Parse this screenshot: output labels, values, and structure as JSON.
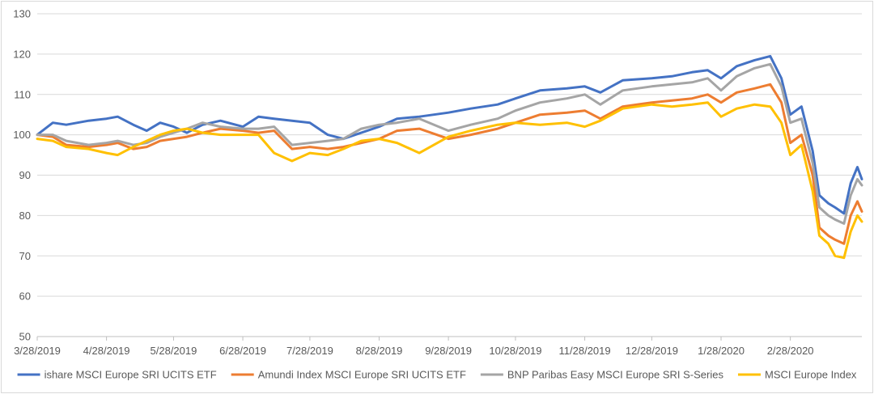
{
  "chart_data": {
    "type": "line",
    "title": "",
    "xlabel": "",
    "ylabel": "",
    "ylim": [
      50,
      130
    ],
    "y_ticks": [
      50,
      60,
      70,
      80,
      90,
      100,
      110,
      120,
      130
    ],
    "x_ticks": [
      "3/28/2019",
      "4/28/2019",
      "5/28/2019",
      "6/28/2019",
      "7/28/2019",
      "8/28/2019",
      "9/28/2019",
      "10/28/2019",
      "11/28/2019",
      "12/28/2019",
      "1/28/2020",
      "2/28/2020"
    ],
    "xlim": [
      "3/28/2019",
      "3/31/2020"
    ],
    "grid": "horizontal",
    "legend_position": "bottom",
    "series": [
      {
        "name": "ishare MSCI Europe SRI UCITS ETF",
        "color": "#4472c4",
        "points": [
          [
            "3/28/2019",
            100
          ],
          [
            "4/4/2019",
            103
          ],
          [
            "4/10/2019",
            102.5
          ],
          [
            "4/20/2019",
            103.5
          ],
          [
            "4/28/2019",
            104
          ],
          [
            "5/3/2019",
            104.5
          ],
          [
            "5/10/2019",
            102.5
          ],
          [
            "5/16/2019",
            101
          ],
          [
            "5/22/2019",
            103
          ],
          [
            "5/28/2019",
            102
          ],
          [
            "6/3/2019",
            100.5
          ],
          [
            "6/10/2019",
            102.5
          ],
          [
            "6/18/2019",
            103.5
          ],
          [
            "6/28/2019",
            102
          ],
          [
            "7/5/2019",
            104.5
          ],
          [
            "7/12/2019",
            104
          ],
          [
            "7/20/2019",
            103.5
          ],
          [
            "7/28/2019",
            103
          ],
          [
            "8/5/2019",
            100
          ],
          [
            "8/12/2019",
            99
          ],
          [
            "8/20/2019",
            100.5
          ],
          [
            "8/28/2019",
            102
          ],
          [
            "9/5/2019",
            104
          ],
          [
            "9/15/2019",
            104.5
          ],
          [
            "9/28/2019",
            105.5
          ],
          [
            "10/8/2019",
            106.5
          ],
          [
            "10/20/2019",
            107.5
          ],
          [
            "10/28/2019",
            109
          ],
          [
            "11/8/2019",
            111
          ],
          [
            "11/20/2019",
            111.5
          ],
          [
            "11/28/2019",
            112
          ],
          [
            "12/5/2019",
            110.5
          ],
          [
            "12/15/2019",
            113.5
          ],
          [
            "12/28/2019",
            114
          ],
          [
            "1/6/2020",
            114.5
          ],
          [
            "1/15/2020",
            115.5
          ],
          [
            "1/22/2020",
            116
          ],
          [
            "1/28/2020",
            114
          ],
          [
            "2/4/2020",
            117
          ],
          [
            "2/12/2020",
            118.5
          ],
          [
            "2/19/2020",
            119.5
          ],
          [
            "2/24/2020",
            114
          ],
          [
            "2/28/2020",
            105
          ],
          [
            "3/4/2020",
            107
          ],
          [
            "3/9/2020",
            96
          ],
          [
            "3/12/2020",
            85
          ],
          [
            "3/16/2020",
            83
          ],
          [
            "3/19/2020",
            82
          ],
          [
            "3/23/2020",
            80.5
          ],
          [
            "3/26/2020",
            88
          ],
          [
            "3/29/2020",
            92
          ],
          [
            "3/31/2020",
            89
          ]
        ]
      },
      {
        "name": "Amundi Index MSCI Europe SRI UCITS ETF",
        "color": "#ed7d31",
        "points": [
          [
            "3/28/2019",
            100
          ],
          [
            "4/4/2019",
            99.5
          ],
          [
            "4/10/2019",
            97.5
          ],
          [
            "4/20/2019",
            97
          ],
          [
            "4/28/2019",
            97.5
          ],
          [
            "5/3/2019",
            98
          ],
          [
            "5/10/2019",
            96.5
          ],
          [
            "5/16/2019",
            97
          ],
          [
            "5/22/2019",
            98.5
          ],
          [
            "5/28/2019",
            99
          ],
          [
            "6/3/2019",
            99.5
          ],
          [
            "6/10/2019",
            100.5
          ],
          [
            "6/18/2019",
            101.5
          ],
          [
            "6/28/2019",
            101
          ],
          [
            "7/5/2019",
            100.5
          ],
          [
            "7/12/2019",
            101
          ],
          [
            "7/20/2019",
            96.5
          ],
          [
            "7/28/2019",
            97
          ],
          [
            "8/5/2019",
            96.5
          ],
          [
            "8/12/2019",
            97
          ],
          [
            "8/20/2019",
            98
          ],
          [
            "8/28/2019",
            99
          ],
          [
            "9/5/2019",
            101
          ],
          [
            "9/15/2019",
            101.5
          ],
          [
            "9/28/2019",
            99
          ],
          [
            "10/8/2019",
            100
          ],
          [
            "10/20/2019",
            101.5
          ],
          [
            "10/28/2019",
            103
          ],
          [
            "11/8/2019",
            105
          ],
          [
            "11/20/2019",
            105.5
          ],
          [
            "11/28/2019",
            106
          ],
          [
            "12/5/2019",
            104
          ],
          [
            "12/15/2019",
            107
          ],
          [
            "12/28/2019",
            108
          ],
          [
            "1/6/2020",
            108.5
          ],
          [
            "1/15/2020",
            109
          ],
          [
            "1/22/2020",
            110
          ],
          [
            "1/28/2020",
            108
          ],
          [
            "2/4/2020",
            110.5
          ],
          [
            "2/12/2020",
            111.5
          ],
          [
            "2/19/2020",
            112.5
          ],
          [
            "2/24/2020",
            108
          ],
          [
            "2/28/2020",
            98
          ],
          [
            "3/4/2020",
            100
          ],
          [
            "3/9/2020",
            90
          ],
          [
            "3/12/2020",
            77
          ],
          [
            "3/16/2020",
            75
          ],
          [
            "3/19/2020",
            74
          ],
          [
            "3/23/2020",
            73
          ],
          [
            "3/26/2020",
            80
          ],
          [
            "3/29/2020",
            83.5
          ],
          [
            "3/31/2020",
            81
          ]
        ]
      },
      {
        "name": "BNP Paribas Easy MSCI Europe SRI S-Series",
        "color": "#a5a5a5",
        "points": [
          [
            "3/28/2019",
            100
          ],
          [
            "4/4/2019",
            100
          ],
          [
            "4/10/2019",
            98.5
          ],
          [
            "4/20/2019",
            97.5
          ],
          [
            "4/28/2019",
            98
          ],
          [
            "5/3/2019",
            98.5
          ],
          [
            "5/10/2019",
            97.5
          ],
          [
            "5/16/2019",
            98
          ],
          [
            "5/22/2019",
            99.5
          ],
          [
            "5/28/2019",
            100.5
          ],
          [
            "6/3/2019",
            101.5
          ],
          [
            "6/10/2019",
            103
          ],
          [
            "6/18/2019",
            102
          ],
          [
            "6/28/2019",
            101.5
          ],
          [
            "7/5/2019",
            101.5
          ],
          [
            "7/12/2019",
            102
          ],
          [
            "7/20/2019",
            97.5
          ],
          [
            "7/28/2019",
            98
          ],
          [
            "8/5/2019",
            98.5
          ],
          [
            "8/12/2019",
            99
          ],
          [
            "8/20/2019",
            101.5
          ],
          [
            "8/28/2019",
            102.5
          ],
          [
            "9/5/2019",
            103
          ],
          [
            "9/15/2019",
            104
          ],
          [
            "9/28/2019",
            101
          ],
          [
            "10/8/2019",
            102.5
          ],
          [
            "10/20/2019",
            104
          ],
          [
            "10/28/2019",
            106
          ],
          [
            "11/8/2019",
            108
          ],
          [
            "11/20/2019",
            109
          ],
          [
            "11/28/2019",
            110
          ],
          [
            "12/5/2019",
            107.5
          ],
          [
            "12/15/2019",
            111
          ],
          [
            "12/28/2019",
            112
          ],
          [
            "1/6/2020",
            112.5
          ],
          [
            "1/15/2020",
            113
          ],
          [
            "1/22/2020",
            114
          ],
          [
            "1/28/2020",
            111
          ],
          [
            "2/4/2020",
            114.5
          ],
          [
            "2/12/2020",
            116.5
          ],
          [
            "2/19/2020",
            117.5
          ],
          [
            "2/24/2020",
            112
          ],
          [
            "2/28/2020",
            103
          ],
          [
            "3/4/2020",
            104
          ],
          [
            "3/9/2020",
            93
          ],
          [
            "3/12/2020",
            82
          ],
          [
            "3/16/2020",
            80
          ],
          [
            "3/19/2020",
            79
          ],
          [
            "3/23/2020",
            78
          ],
          [
            "3/26/2020",
            85
          ],
          [
            "3/29/2020",
            89
          ],
          [
            "3/31/2020",
            87.5
          ]
        ]
      },
      {
        "name": "MSCI Europe Index",
        "color": "#ffc000",
        "points": [
          [
            "3/28/2019",
            99
          ],
          [
            "4/4/2019",
            98.5
          ],
          [
            "4/10/2019",
            97
          ],
          [
            "4/20/2019",
            96.5
          ],
          [
            "4/28/2019",
            95.5
          ],
          [
            "5/3/2019",
            95
          ],
          [
            "5/10/2019",
            97
          ],
          [
            "5/16/2019",
            98.5
          ],
          [
            "5/22/2019",
            100
          ],
          [
            "5/28/2019",
            101
          ],
          [
            "6/3/2019",
            101.5
          ],
          [
            "6/10/2019",
            100.5
          ],
          [
            "6/18/2019",
            100
          ],
          [
            "6/28/2019",
            100
          ],
          [
            "7/5/2019",
            100
          ],
          [
            "7/12/2019",
            95.5
          ],
          [
            "7/20/2019",
            93.5
          ],
          [
            "7/28/2019",
            95.5
          ],
          [
            "8/5/2019",
            95
          ],
          [
            "8/12/2019",
            96.5
          ],
          [
            "8/20/2019",
            98.5
          ],
          [
            "8/28/2019",
            99
          ],
          [
            "9/5/2019",
            98
          ],
          [
            "9/15/2019",
            95.5
          ],
          [
            "9/28/2019",
            99.5
          ],
          [
            "10/8/2019",
            101
          ],
          [
            "10/20/2019",
            102.5
          ],
          [
            "10/28/2019",
            103
          ],
          [
            "11/8/2019",
            102.5
          ],
          [
            "11/20/2019",
            103
          ],
          [
            "11/28/2019",
            102
          ],
          [
            "12/5/2019",
            103.5
          ],
          [
            "12/15/2019",
            106.5
          ],
          [
            "12/28/2019",
            107.5
          ],
          [
            "1/6/2020",
            107
          ],
          [
            "1/15/2020",
            107.5
          ],
          [
            "1/22/2020",
            108
          ],
          [
            "1/28/2020",
            104.5
          ],
          [
            "2/4/2020",
            106.5
          ],
          [
            "2/12/2020",
            107.5
          ],
          [
            "2/19/2020",
            107
          ],
          [
            "2/24/2020",
            103
          ],
          [
            "2/28/2020",
            95
          ],
          [
            "3/4/2020",
            97.5
          ],
          [
            "3/9/2020",
            86
          ],
          [
            "3/12/2020",
            75
          ],
          [
            "3/16/2020",
            73
          ],
          [
            "3/19/2020",
            70
          ],
          [
            "3/23/2020",
            69.5
          ],
          [
            "3/26/2020",
            76
          ],
          [
            "3/29/2020",
            80
          ],
          [
            "3/31/2020",
            78.5
          ]
        ]
      }
    ]
  }
}
